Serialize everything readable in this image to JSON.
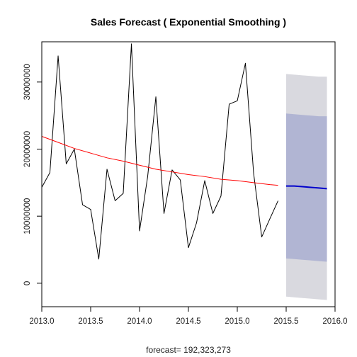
{
  "chart_data": {
    "type": "line",
    "title": "Sales Forecast ( Exponential Smoothing )",
    "xlabel": "forecast= 192,323,273",
    "ylabel": "",
    "xlim": [
      2013.0,
      2016.0
    ],
    "ylim": [
      -3500000,
      36000000
    ],
    "x_ticks": [
      "2013.0",
      "2013.5",
      "2014.0",
      "2014.5",
      "2015.0",
      "2015.5",
      "2016.0"
    ],
    "y_ticks": [
      "0",
      "10000000",
      "20000000",
      "30000000"
    ],
    "colors": {
      "actual": "#000000",
      "fitted": "#ff0000",
      "forecast": "#0000cc",
      "band80": "#b1b5d3",
      "band95": "#d9d9df"
    },
    "series": [
      {
        "name": "",
        "role": "actual",
        "x": [
          2013.0,
          2013.083,
          2013.167,
          2013.25,
          2013.333,
          2013.417,
          2013.5,
          2013.583,
          2013.667,
          2013.75,
          2013.833,
          2013.917,
          2014.0,
          2014.083,
          2014.167,
          2014.25,
          2014.333,
          2014.417,
          2014.5,
          2014.583,
          2014.667,
          2014.75,
          2014.833,
          2014.917,
          2015.0,
          2015.083,
          2015.167,
          2015.25,
          2015.333,
          2015.417
        ],
        "values": [
          14300000,
          16500000,
          33900000,
          17800000,
          20000000,
          11700000,
          11000000,
          3600000,
          17000000,
          12300000,
          13400000,
          35700000,
          7800000,
          15900000,
          27800000,
          10400000,
          16900000,
          15400000,
          5300000,
          9000000,
          15300000,
          10400000,
          13000000,
          26700000,
          27200000,
          32800000,
          16400000,
          6900000,
          9600000,
          12300000
        ]
      },
      {
        "name": "",
        "role": "fitted",
        "x": [
          2013.0,
          2013.167,
          2013.333,
          2013.5,
          2013.667,
          2013.833,
          2014.0,
          2014.167,
          2014.333,
          2014.5,
          2014.667,
          2014.833,
          2015.0,
          2015.167,
          2015.333,
          2015.417
        ],
        "values": [
          21900000,
          21000000,
          20100000,
          19400000,
          18700000,
          18200000,
          17600000,
          17000000,
          16600000,
          16200000,
          15900000,
          15500000,
          15300000,
          15000000,
          14700000,
          14600000
        ]
      },
      {
        "name": "",
        "role": "forecast",
        "x": [
          2015.5,
          2015.583,
          2015.667,
          2015.75,
          2015.833,
          2015.917
        ],
        "values": [
          14500000,
          14500000,
          14400000,
          14300000,
          14200000,
          14100000
        ],
        "lo80": [
          3700000,
          3600000,
          3500000,
          3400000,
          3300000,
          3200000
        ],
        "hi80": [
          25300000,
          25200000,
          25100000,
          25000000,
          24900000,
          24900000
        ],
        "lo95": [
          -2000000,
          -2100000,
          -2200000,
          -2300000,
          -2400000,
          -2500000
        ],
        "hi95": [
          31200000,
          31100000,
          31000000,
          30900000,
          30800000,
          30800000
        ]
      }
    ]
  }
}
